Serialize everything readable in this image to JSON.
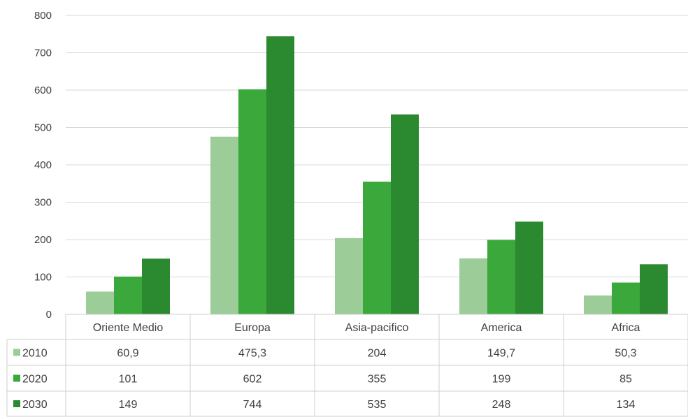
{
  "chart_data": {
    "type": "bar",
    "categories": [
      "Oriente Medio",
      "Europa",
      "Asia-pacifico",
      "America",
      "Africa"
    ],
    "series": [
      {
        "name": "2010",
        "values": [
          60.9,
          475.3,
          204,
          149.7,
          50.3
        ],
        "labels": [
          "60,9",
          "475,3",
          "204",
          "149,7",
          "50,3"
        ],
        "color": "#9ccc98"
      },
      {
        "name": "2020",
        "values": [
          101,
          602,
          355,
          199,
          85
        ],
        "labels": [
          "101",
          "602",
          "355",
          "199",
          "85"
        ],
        "color": "#3aa83a"
      },
      {
        "name": "2030",
        "values": [
          149,
          744,
          535,
          248,
          134
        ],
        "labels": [
          "149",
          "744",
          "535",
          "248",
          "134"
        ],
        "color": "#2b8a2f"
      }
    ],
    "yticks": [
      "0",
      "100",
      "200",
      "300",
      "400",
      "500",
      "600",
      "700",
      "800"
    ],
    "ylim": [
      0,
      800
    ],
    "grid": true,
    "legend": "data-table"
  }
}
